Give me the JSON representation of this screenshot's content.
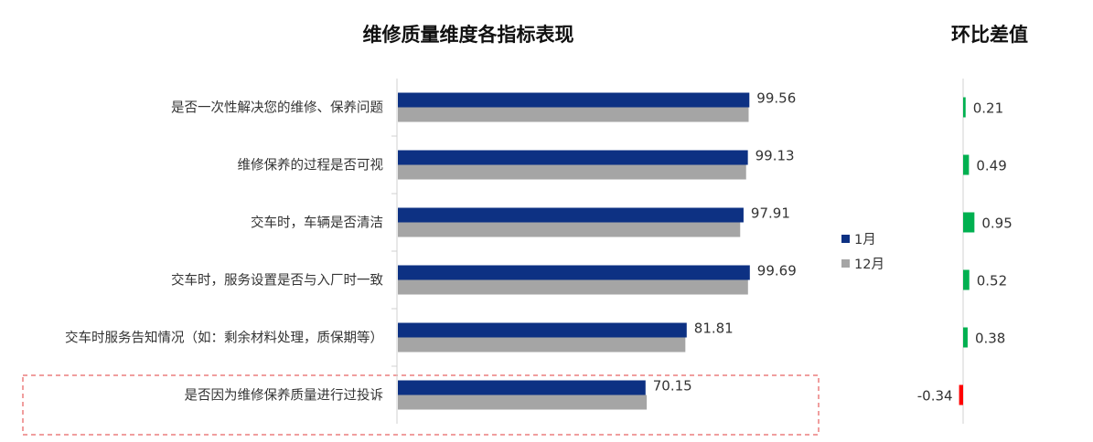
{
  "chart_data": [
    {
      "type": "bar",
      "orientation": "horizontal",
      "title": "维修质量维度各指标表现",
      "categories": [
        "是否一次性解决您的维修、保养问题",
        "维修保养的过程是否可视",
        "交车时，车辆是否清洁",
        "交车时，服务设置是否与入厂时一致",
        "交车时服务告知情况（如：剩余材料处理，质保期等）",
        "是否因为维修保养质量进行过投诉"
      ],
      "series": [
        {
          "name": "1月",
          "color": "#0d3183",
          "values": [
            99.56,
            99.13,
            97.91,
            99.69,
            81.81,
            70.15
          ]
        },
        {
          "name": "12月",
          "color": "#a5a5a5",
          "values": [
            99.35,
            98.64,
            96.96,
            99.17,
            81.43,
            70.49
          ]
        }
      ],
      "data_labels_series": "1月",
      "highlighted_category": "是否因为维修保养质量进行过投诉",
      "legend_position": "right",
      "grid": false
    },
    {
      "type": "bar",
      "orientation": "horizontal",
      "title": "环比差值",
      "categories": [
        "是否一次性解决您的维修、保养问题",
        "维修保养的过程是否可视",
        "交车时，车辆是否清洁",
        "交车时，服务设置是否与入厂时一致",
        "交车时服务告知情况（如：剩余材料处理，质保期等）",
        "是否因为维修保养质量进行过投诉"
      ],
      "values": [
        0.21,
        0.49,
        0.95,
        0.52,
        0.38,
        -0.34
      ],
      "labels": [
        "0.21",
        "0.49",
        "0.95",
        "0.52",
        "0.38",
        "-0.34"
      ],
      "positive_color": "#00b050",
      "negative_color": "#ff0000"
    }
  ]
}
